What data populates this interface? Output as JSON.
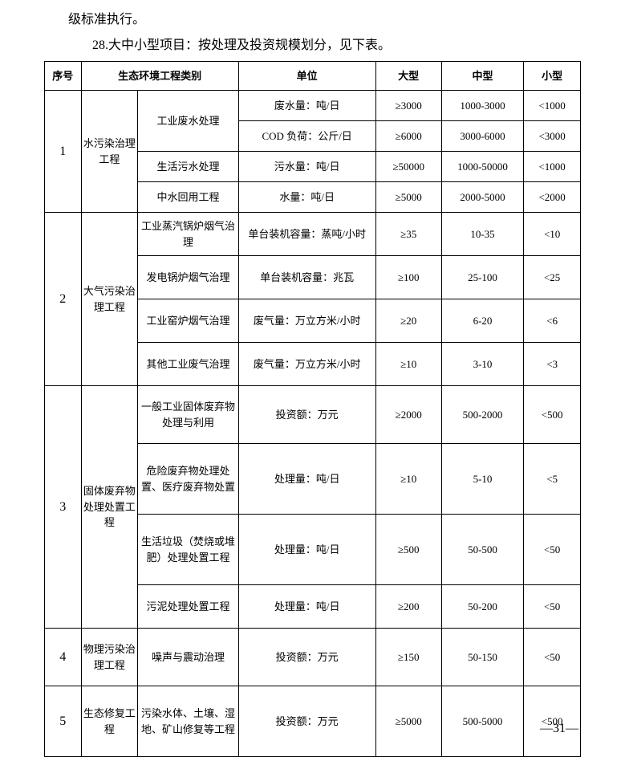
{
  "intro": {
    "line1": "级标准执行。",
    "line2": "28.大中小型项目：按处理及投资规模划分，见下表。"
  },
  "headers": {
    "seq": "序号",
    "category": "生态环境工程类别",
    "unit": "单位",
    "large": "大型",
    "medium": "中型",
    "small": "小型"
  },
  "r1": {
    "seq": "1",
    "cat": "水污染治理工程",
    "s1": "工业废水处理",
    "u1": "废水量：吨/日",
    "l1": "≥3000",
    "m1": "1000-3000",
    "sm1": "<1000",
    "u2": "COD 负荷：公斤/日",
    "l2": "≥6000",
    "m2": "3000-6000",
    "sm2": "<3000",
    "s2": "生活污水处理",
    "u3": "污水量：吨/日",
    "l3": "≥50000",
    "m3": "1000-50000",
    "sm3": "<1000",
    "s3": "中水回用工程",
    "u4": "水量：吨/日",
    "l4": "≥5000",
    "m4": "2000-5000",
    "sm4": "<2000"
  },
  "r2": {
    "seq": "2",
    "cat": "大气污染治理工程",
    "s1": "工业蒸汽锅炉烟气治理",
    "u1": "单台装机容量：蒸吨/小时",
    "l1": "≥35",
    "m1": "10-35",
    "sm1": "<10",
    "s2": "发电锅炉烟气治理",
    "u2": "单台装机容量：兆瓦",
    "l2": "≥100",
    "m2": "25-100",
    "sm2": "<25",
    "s3": "工业窑炉烟气治理",
    "u3": "废气量：万立方米/小时",
    "l3": "≥20",
    "m3": "6-20",
    "sm3": "<6",
    "s4": "其他工业废气治理",
    "u4": "废气量：万立方米/小时",
    "l4": "≥10",
    "m4": "3-10",
    "sm4": "<3"
  },
  "r3": {
    "seq": "3",
    "cat": "固体废弃物处理处置工程",
    "s1": "一般工业固体废弃物处理与利用",
    "u1": "投资额：万元",
    "l1": "≥2000",
    "m1": "500-2000",
    "sm1": "<500",
    "s2": "危险废弃物处理处置、医疗废弃物处置",
    "u2": "处理量：吨/日",
    "l2": "≥10",
    "m2": "5-10",
    "sm2": "<5",
    "s3": "生活垃圾（焚烧或堆肥）处理处置工程",
    "u3": "处理量：吨/日",
    "l3": "≥500",
    "m3": "50-500",
    "sm3": "<50",
    "s4": "污泥处理处置工程",
    "u4": "处理量：吨/日",
    "l4": "≥200",
    "m4": "50-200",
    "sm4": "<50"
  },
  "r4": {
    "seq": "4",
    "cat": "物理污染治理工程",
    "s1": "噪声与震动治理",
    "u1": "投资额：万元",
    "l1": "≥150",
    "m1": "50-150",
    "sm1": "<50"
  },
  "r5": {
    "seq": "5",
    "cat": "生态修复工程",
    "s1": "污染水体、土壤、湿地、矿山修复等工程",
    "u1": "投资额：万元",
    "l1": "≥5000",
    "m1": "500-5000",
    "sm1": "<500"
  },
  "pageNum": "—31—"
}
